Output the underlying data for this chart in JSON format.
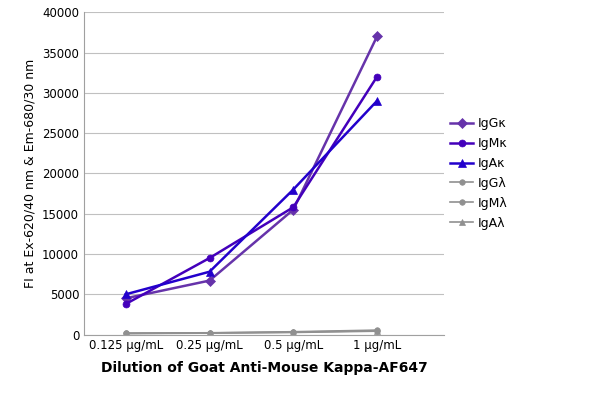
{
  "x_labels": [
    "0.125 μg/mL",
    "0.25 μg/mL",
    "0.5 μg/mL",
    "1 μg/mL"
  ],
  "x_positions": [
    1,
    2,
    3,
    4
  ],
  "series": [
    {
      "label": "IgGκ",
      "color": "#6633AA",
      "marker": "D",
      "markersize": 5,
      "linewidth": 1.8,
      "values": [
        4500,
        6700,
        15500,
        37000
      ]
    },
    {
      "label": "IgMκ",
      "color": "#4400BB",
      "marker": "o",
      "markersize": 5,
      "linewidth": 1.8,
      "values": [
        3800,
        9500,
        15800,
        32000
      ]
    },
    {
      "label": "IgAκ",
      "color": "#2200CC",
      "marker": "^",
      "markersize": 6,
      "linewidth": 1.8,
      "values": [
        5000,
        7800,
        18000,
        29000
      ]
    },
    {
      "label": "IgGλ",
      "color": "#909090",
      "marker": "o",
      "markersize": 4,
      "linewidth": 1.2,
      "values": [
        180,
        220,
        350,
        550
      ]
    },
    {
      "label": "IgMλ",
      "color": "#909090",
      "marker": "o",
      "markersize": 4,
      "linewidth": 1.2,
      "values": [
        150,
        200,
        300,
        480
      ]
    },
    {
      "label": "IgAλ",
      "color": "#909090",
      "marker": "^",
      "markersize": 4,
      "linewidth": 1.2,
      "values": [
        120,
        180,
        260,
        420
      ]
    }
  ],
  "ylabel": "FI at Ex-620/40 nm & Em-680/30 nm",
  "xlabel": "Dilution of Goat Anti-Mouse Kappa-AF647",
  "ylim": [
    0,
    40000
  ],
  "yticks": [
    0,
    5000,
    10000,
    15000,
    20000,
    25000,
    30000,
    35000,
    40000
  ],
  "background_color": "#ffffff",
  "grid_color": "#c0c0c0",
  "ylabel_fontsize": 9,
  "xlabel_fontsize": 10,
  "legend_fontsize": 9,
  "tick_fontsize": 8.5
}
